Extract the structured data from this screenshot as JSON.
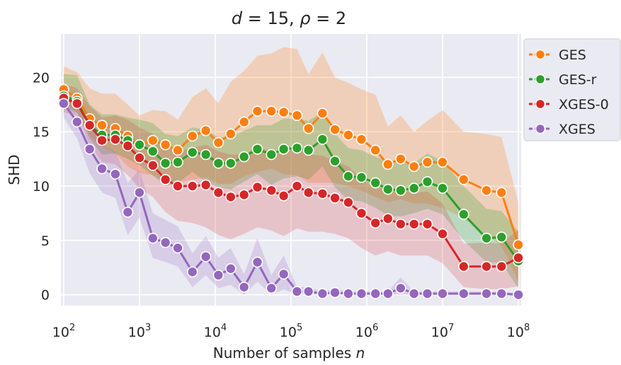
{
  "chart_data": {
    "type": "line",
    "title_parts": {
      "d": "d",
      "eq1": " = 15, ",
      "rho": "ρ",
      "eq2": " = 2"
    },
    "xlabel": "Number of samples",
    "xlabel_var": "n",
    "ylabel": "SHD",
    "x_scale": "log",
    "xlim": [
      100,
      100000000
    ],
    "ylim": [
      -1,
      24
    ],
    "y_ticks": [
      0,
      5,
      10,
      15,
      20
    ],
    "x_ticks": [
      {
        "value": 100,
        "base": "10",
        "exp": "2"
      },
      {
        "value": 1000,
        "base": "10",
        "exp": "3"
      },
      {
        "value": 10000,
        "base": "10",
        "exp": "4"
      },
      {
        "value": 100000,
        "base": "10",
        "exp": "5"
      },
      {
        "value": 1000000,
        "base": "10",
        "exp": "6"
      },
      {
        "value": 10000000,
        "base": "10",
        "exp": "7"
      },
      {
        "value": 100000000,
        "base": "10",
        "exp": "8"
      }
    ],
    "grid": true,
    "background": "#eaeaf2",
    "legend_position": "upper right, outside plot",
    "x": [
      100,
      150,
      220,
      320,
      480,
      700,
      1000,
      1500,
      2200,
      3200,
      5000,
      7500,
      11000,
      16000,
      24000,
      36000,
      55000,
      80000,
      120000,
      170000,
      260000,
      380000,
      570000,
      850000,
      1300000,
      1900000,
      2800000,
      4200000,
      6300000,
      10000000,
      19000000,
      38000000,
      60000000,
      100000000
    ],
    "series": [
      {
        "name": "GES",
        "color": "#ff7f0e",
        "values": [
          18.9,
          18.1,
          16.2,
          15.6,
          15.3,
          14.6,
          13.8,
          14.2,
          13.8,
          13.3,
          14.6,
          15.1,
          14.0,
          14.8,
          15.9,
          16.9,
          16.9,
          16.8,
          16.5,
          15.3,
          16.7,
          15.2,
          14.7,
          14.3,
          13.3,
          12.0,
          12.5,
          11.8,
          12.2,
          12.2,
          10.6,
          9.6,
          9.4,
          4.6
        ],
        "lower": [
          17.5,
          16.8,
          14.6,
          13.6,
          13.0,
          11.8,
          11.2,
          11.0,
          10.4,
          10.3,
          10.6,
          10.8,
          10.2,
          10.2,
          10.9,
          11.3,
          11.6,
          11.1,
          11.0,
          10.3,
          10.3,
          10.3,
          10.0,
          9.6,
          9.0,
          8.5,
          8.8,
          8.4,
          8.4,
          8.0,
          7.0,
          5.5,
          4.5,
          1.2
        ],
        "upper": [
          21.0,
          20.5,
          19.0,
          18.5,
          18.5,
          17.5,
          16.5,
          17.0,
          16.9,
          16.1,
          18.2,
          19.0,
          17.6,
          19.6,
          20.6,
          22.0,
          22.2,
          22.8,
          22.6,
          20.3,
          22.3,
          20.0,
          19.5,
          18.9,
          18.4,
          15.5,
          16.5,
          15.0,
          16.0,
          17.0,
          15.0,
          14.8,
          14.5,
          8.5
        ]
      },
      {
        "name": "GES-r",
        "color": "#2ca02c",
        "values": [
          18.3,
          17.8,
          15.6,
          14.7,
          14.7,
          14.2,
          13.8,
          13.2,
          12.1,
          12.2,
          13.1,
          12.9,
          12.1,
          12.1,
          12.7,
          13.4,
          12.9,
          13.4,
          13.5,
          13.3,
          14.3,
          12.3,
          10.9,
          10.8,
          10.3,
          9.7,
          9.6,
          9.8,
          10.4,
          9.8,
          7.4,
          5.2,
          5.3,
          3.1
        ],
        "lower": [
          17.2,
          16.8,
          14.4,
          12.9,
          13.0,
          12.5,
          11.9,
          11.0,
          10.0,
          10.3,
          11.3,
          10.4,
          9.9,
          9.7,
          10.4,
          11.1,
          10.1,
          10.7,
          10.9,
          10.6,
          11.8,
          9.9,
          8.7,
          8.6,
          8.0,
          7.3,
          7.2,
          7.5,
          7.9,
          7.4,
          5.0,
          3.0,
          2.9,
          0.6
        ],
        "upper": [
          20.3,
          20.2,
          17.5,
          16.6,
          16.6,
          16.3,
          16.1,
          15.8,
          14.8,
          14.6,
          15.4,
          15.2,
          14.5,
          14.5,
          15.1,
          15.6,
          15.6,
          16.2,
          16.2,
          16.0,
          16.8,
          14.8,
          13.5,
          13.3,
          12.7,
          12.3,
          12.1,
          12.1,
          13.0,
          12.3,
          10.0,
          7.9,
          7.7,
          5.8
        ]
      },
      {
        "name": "XGES-0",
        "color": "#d62728",
        "values": [
          18.1,
          17.6,
          15.6,
          14.2,
          14.3,
          13.7,
          12.6,
          11.9,
          10.6,
          10.0,
          10.0,
          10.1,
          9.4,
          9.0,
          9.2,
          9.9,
          9.6,
          9.1,
          10.0,
          9.4,
          9.3,
          8.9,
          8.5,
          7.5,
          6.6,
          7.0,
          6.5,
          6.5,
          6.5,
          5.6,
          2.6,
          2.6,
          2.6,
          3.4
        ],
        "lower": [
          16.8,
          16.5,
          13.8,
          12.2,
          12.0,
          11.0,
          9.8,
          9.0,
          7.6,
          6.8,
          6.6,
          6.2,
          5.5,
          5.1,
          5.6,
          6.2,
          5.9,
          5.4,
          6.1,
          5.8,
          5.8,
          5.6,
          5.2,
          4.3,
          3.6,
          4.0,
          3.6,
          3.6,
          3.6,
          2.9,
          0.7,
          0.5,
          0.5,
          0.8
        ],
        "upper": [
          19.4,
          19.0,
          17.4,
          16.3,
          16.5,
          16.1,
          15.4,
          14.8,
          13.7,
          13.2,
          13.5,
          13.8,
          13.2,
          12.9,
          12.9,
          13.6,
          13.2,
          12.8,
          13.8,
          12.9,
          12.8,
          12.3,
          11.8,
          10.7,
          9.7,
          10.0,
          9.6,
          9.4,
          9.5,
          8.4,
          4.7,
          4.8,
          4.7,
          6.0
        ]
      },
      {
        "name": "XGES",
        "color": "#9467bd",
        "values": [
          17.6,
          15.9,
          13.4,
          11.6,
          11.1,
          7.6,
          9.4,
          5.2,
          4.8,
          4.3,
          2.1,
          3.5,
          1.8,
          2.4,
          0.7,
          3.0,
          0.6,
          1.9,
          0.3,
          0.3,
          0.1,
          0.2,
          0.1,
          0.1,
          0.1,
          0.1,
          0.6,
          0.1,
          0.1,
          0.1,
          0.1,
          0.1,
          0.1,
          0.0
        ],
        "lower": [
          16.3,
          14.4,
          11.2,
          9.4,
          8.9,
          5.5,
          7.1,
          3.4,
          3.0,
          2.6,
          0.7,
          1.8,
          0.6,
          0.9,
          0.0,
          1.2,
          0.0,
          0.5,
          0.0,
          0.0,
          0.0,
          0.0,
          0.0,
          0.0,
          0.0,
          0.0,
          0.0,
          0.0,
          0.0,
          0.0,
          0.0,
          0.0,
          0.0,
          0.0
        ],
        "upper": [
          19.0,
          17.4,
          15.6,
          13.8,
          13.2,
          10.3,
          11.5,
          7.5,
          6.9,
          6.3,
          3.8,
          5.4,
          3.4,
          4.3,
          1.9,
          5.2,
          1.8,
          3.6,
          0.7,
          0.7,
          0.3,
          0.5,
          0.3,
          0.3,
          0.3,
          0.3,
          1.6,
          0.3,
          0.3,
          0.3,
          0.3,
          0.3,
          0.3,
          0.1
        ]
      }
    ]
  }
}
